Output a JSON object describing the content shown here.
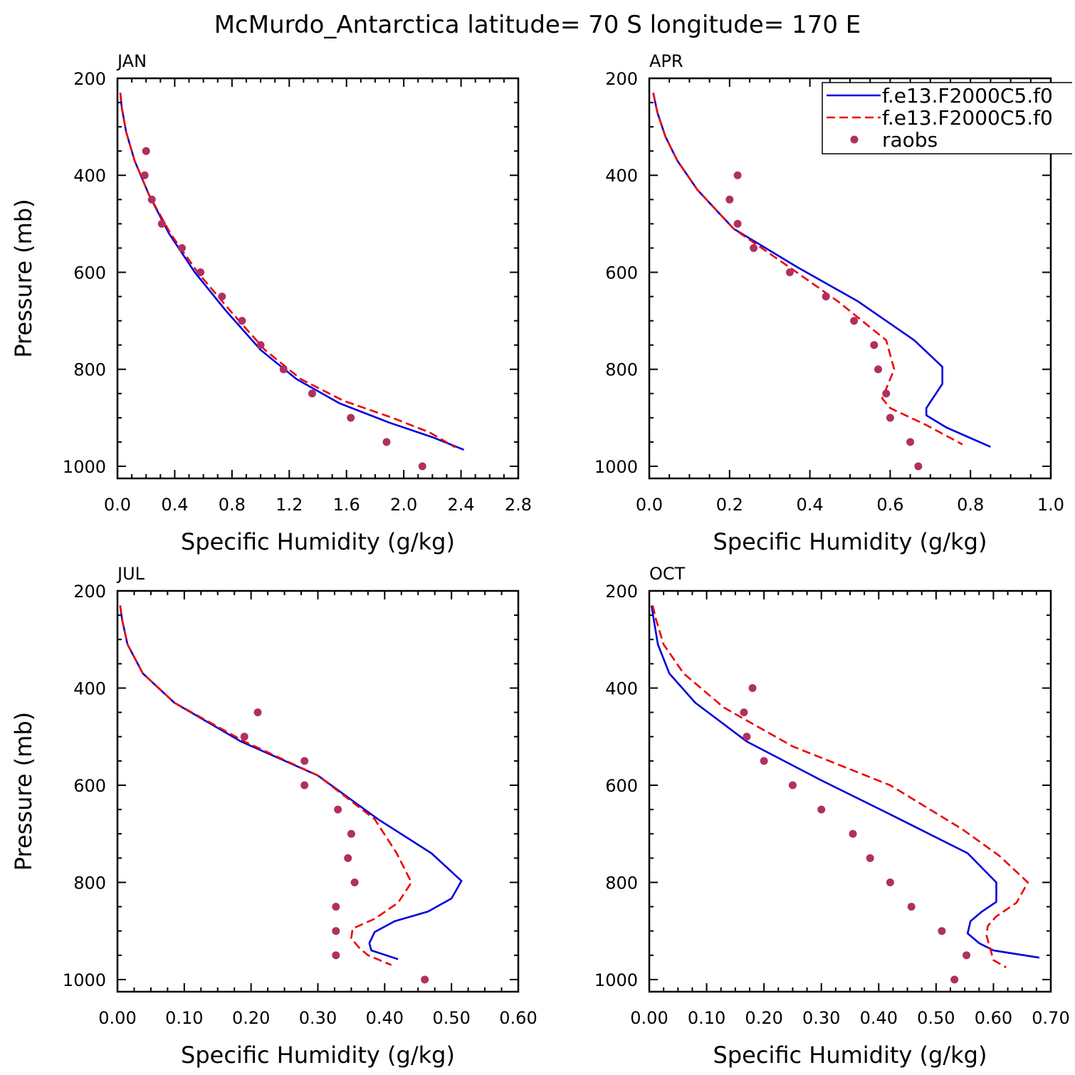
{
  "title": "McMurdo_Antarctica  latitude= 70 S longitude= 170 E",
  "colors": {
    "model1": "#0000dd",
    "model2": "#ee0000",
    "raobs": "#b03060"
  },
  "legend": {
    "placement": "top-right of APR panel",
    "entries": [
      {
        "label": "f.e13.F2000C5.f0",
        "style": "solid",
        "color": "#0000dd"
      },
      {
        "label": "f.e13.F2000C5.f0",
        "style": "dashed",
        "color": "#ee0000"
      },
      {
        "label": "raobs",
        "style": "dots",
        "color": "#b03060"
      }
    ]
  },
  "chart_data": [
    {
      "type": "line",
      "panel": "JAN",
      "xlabel": "Specific Humidity (g/kg)",
      "ylabel": "Pressure (mb)",
      "xlim": [
        0,
        2.8
      ],
      "xticks": [
        0,
        0.4,
        0.8,
        1.2,
        1.6,
        2.0,
        2.4,
        2.8
      ],
      "xtick_decimals": 1,
      "ylim": [
        200,
        1025
      ],
      "yticks": [
        200,
        400,
        600,
        800,
        1000
      ],
      "y_inverted": true,
      "series": [
        {
          "style": "solid",
          "color": "#0000dd",
          "x": [
            0.02,
            0.03,
            0.06,
            0.12,
            0.22,
            0.36,
            0.54,
            0.76,
            1.0,
            1.25,
            1.55,
            1.9,
            2.2,
            2.42
          ],
          "y": [
            230,
            260,
            310,
            370,
            440,
            520,
            600,
            680,
            760,
            820,
            870,
            910,
            940,
            966
          ]
        },
        {
          "style": "dashed",
          "color": "#ee0000",
          "x": [
            0.02,
            0.03,
            0.06,
            0.12,
            0.22,
            0.37,
            0.56,
            0.79,
            1.03,
            1.28,
            1.58,
            1.92,
            2.18,
            2.36
          ],
          "y": [
            230,
            260,
            310,
            370,
            440,
            520,
            600,
            680,
            760,
            820,
            865,
            900,
            930,
            961
          ]
        },
        {
          "style": "dots",
          "color": "#b03060",
          "x": [
            0.2,
            0.19,
            0.24,
            0.31,
            0.45,
            0.58,
            0.73,
            0.87,
            1.0,
            1.16,
            1.36,
            1.63,
            1.88,
            2.13
          ],
          "y": [
            350,
            400,
            450,
            500,
            550,
            600,
            650,
            700,
            750,
            800,
            850,
            900,
            950,
            1000
          ]
        }
      ]
    },
    {
      "type": "line",
      "panel": "APR",
      "xlabel": "Specific Humidity (g/kg)",
      "ylabel": "",
      "xlim": [
        0,
        1.0
      ],
      "xticks": [
        0,
        0.2,
        0.4,
        0.6,
        0.8,
        1.0
      ],
      "xtick_decimals": 1,
      "ylim": [
        200,
        1025
      ],
      "yticks": [
        200,
        400,
        600,
        800,
        1000
      ],
      "y_inverted": true,
      "series": [
        {
          "style": "solid",
          "color": "#0000dd",
          "x": [
            0.01,
            0.02,
            0.04,
            0.07,
            0.12,
            0.21,
            0.37,
            0.52,
            0.66,
            0.73,
            0.73,
            0.69,
            0.69,
            0.74,
            0.85
          ],
          "y": [
            230,
            270,
            320,
            370,
            430,
            510,
            590,
            660,
            740,
            795,
            830,
            880,
            895,
            920,
            960
          ]
        },
        {
          "style": "dashed",
          "color": "#ee0000",
          "x": [
            0.01,
            0.02,
            0.04,
            0.07,
            0.12,
            0.21,
            0.35,
            0.47,
            0.59,
            0.61,
            0.59,
            0.58,
            0.6,
            0.69,
            0.78
          ],
          "y": [
            230,
            270,
            320,
            370,
            430,
            510,
            590,
            660,
            740,
            800,
            840,
            860,
            880,
            915,
            955
          ]
        },
        {
          "style": "dots",
          "color": "#b03060",
          "x": [
            0.22,
            0.2,
            0.22,
            0.26,
            0.35,
            0.44,
            0.51,
            0.56,
            0.57,
            0.59,
            0.6,
            0.65,
            0.67
          ],
          "y": [
            400,
            450,
            500,
            550,
            600,
            650,
            700,
            750,
            800,
            850,
            900,
            950,
            1000
          ]
        }
      ]
    },
    {
      "type": "line",
      "panel": "JUL",
      "xlabel": "Specific Humidity (g/kg)",
      "ylabel": "Pressure (mb)",
      "xlim": [
        0,
        0.6
      ],
      "xticks": [
        0,
        0.1,
        0.2,
        0.3,
        0.4,
        0.5,
        0.6
      ],
      "xtick_decimals": 2,
      "ylim": [
        200,
        1025
      ],
      "yticks": [
        200,
        400,
        600,
        800,
        1000
      ],
      "y_inverted": true,
      "series": [
        {
          "style": "solid",
          "color": "#0000dd",
          "x": [
            0.004,
            0.007,
            0.015,
            0.038,
            0.085,
            0.185,
            0.3,
            0.39,
            0.47,
            0.515,
            0.5,
            0.465,
            0.415,
            0.385,
            0.377,
            0.38,
            0.42
          ],
          "y": [
            230,
            260,
            310,
            370,
            430,
            510,
            580,
            670,
            740,
            797,
            833,
            860,
            880,
            902,
            925,
            940,
            958
          ]
        },
        {
          "style": "dashed",
          "color": "#ee0000",
          "x": [
            0.004,
            0.007,
            0.015,
            0.038,
            0.085,
            0.19,
            0.3,
            0.385,
            0.418,
            0.44,
            0.42,
            0.385,
            0.352,
            0.35,
            0.362,
            0.375,
            0.41
          ],
          "y": [
            230,
            260,
            310,
            370,
            430,
            510,
            580,
            670,
            740,
            800,
            842,
            875,
            895,
            915,
            935,
            950,
            970
          ]
        },
        {
          "style": "dots",
          "color": "#b03060",
          "x": [
            0.21,
            0.19,
            0.28,
            0.28,
            0.33,
            0.35,
            0.345,
            0.355,
            0.327,
            0.327,
            0.327,
            0.46
          ],
          "y": [
            450,
            500,
            550,
            600,
            650,
            700,
            750,
            800,
            850,
            900,
            950,
            1000
          ]
        }
      ]
    },
    {
      "type": "line",
      "panel": "OCT",
      "xlabel": "Specific Humidity (g/kg)",
      "ylabel": "",
      "xlim": [
        0,
        0.7
      ],
      "xticks": [
        0,
        0.1,
        0.2,
        0.3,
        0.4,
        0.5,
        0.6,
        0.7
      ],
      "xtick_decimals": 2,
      "ylim": [
        200,
        1025
      ],
      "yticks": [
        200,
        400,
        600,
        800,
        1000
      ],
      "y_inverted": true,
      "series": [
        {
          "style": "solid",
          "color": "#0000dd",
          "x": [
            0.004,
            0.008,
            0.015,
            0.035,
            0.08,
            0.17,
            0.3,
            0.42,
            0.555,
            0.605,
            0.605,
            0.58,
            0.56,
            0.555,
            0.575,
            0.6,
            0.68
          ],
          "y": [
            230,
            260,
            310,
            370,
            430,
            510,
            590,
            660,
            740,
            800,
            840,
            860,
            880,
            905,
            925,
            940,
            955
          ]
        },
        {
          "style": "dashed",
          "color": "#ee0000",
          "x": [
            0.006,
            0.012,
            0.025,
            0.06,
            0.13,
            0.25,
            0.42,
            0.545,
            0.61,
            0.66,
            0.64,
            0.605,
            0.59,
            0.588,
            0.6,
            0.622
          ],
          "y": [
            230,
            260,
            310,
            370,
            440,
            520,
            600,
            690,
            745,
            800,
            842,
            870,
            890,
            910,
            960,
            975
          ]
        },
        {
          "style": "dots",
          "color": "#b03060",
          "x": [
            0.18,
            0.165,
            0.17,
            0.2,
            0.25,
            0.3,
            0.355,
            0.385,
            0.42,
            0.457,
            0.51,
            0.553,
            0.532
          ],
          "y": [
            400,
            450,
            500,
            550,
            600,
            650,
            700,
            750,
            800,
            850,
            900,
            950,
            1000
          ]
        }
      ]
    }
  ]
}
